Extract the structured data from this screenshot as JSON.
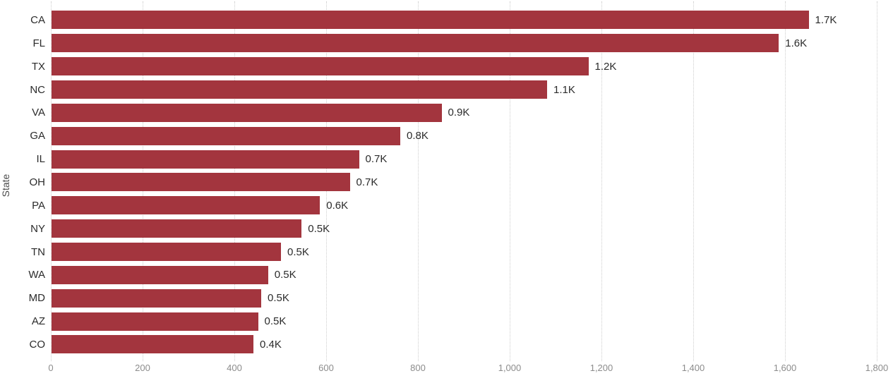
{
  "chart_data": {
    "type": "bar",
    "orientation": "horizontal",
    "title": "",
    "xlabel": "",
    "ylabel": "State",
    "categories": [
      "CA",
      "FL",
      "TX",
      "NC",
      "VA",
      "GA",
      "IL",
      "OH",
      "PA",
      "NY",
      "TN",
      "WA",
      "MD",
      "AZ",
      "CO"
    ],
    "values": [
      1650,
      1585,
      1170,
      1080,
      850,
      760,
      670,
      650,
      585,
      545,
      500,
      472,
      457,
      450,
      440
    ],
    "data_labels": [
      "1.7K",
      "1.6K",
      "1.2K",
      "1.1K",
      "0.9K",
      "0.8K",
      "0.7K",
      "0.7K",
      "0.6K",
      "0.5K",
      "0.5K",
      "0.5K",
      "0.5K",
      "0.5K",
      "0.4K"
    ],
    "xlim": [
      0,
      1800
    ],
    "x_tick_values": [
      0,
      200,
      400,
      600,
      800,
      1000,
      1200,
      1400,
      1600,
      1800
    ],
    "x_tick_labels": [
      "0",
      "200",
      "400",
      "600",
      "800",
      "1,000",
      "1,200",
      "1,400",
      "1,600",
      "1,800"
    ],
    "grid": "vertical-dotted",
    "legend": "none",
    "colors": {
      "bar": "#A3353E",
      "label_text": "#2b2b2b",
      "tick_text": "#8c8c8c",
      "axis_title_text": "#4a4a4a",
      "gridline": "#cdcdcd",
      "background": "#ffffff"
    }
  }
}
